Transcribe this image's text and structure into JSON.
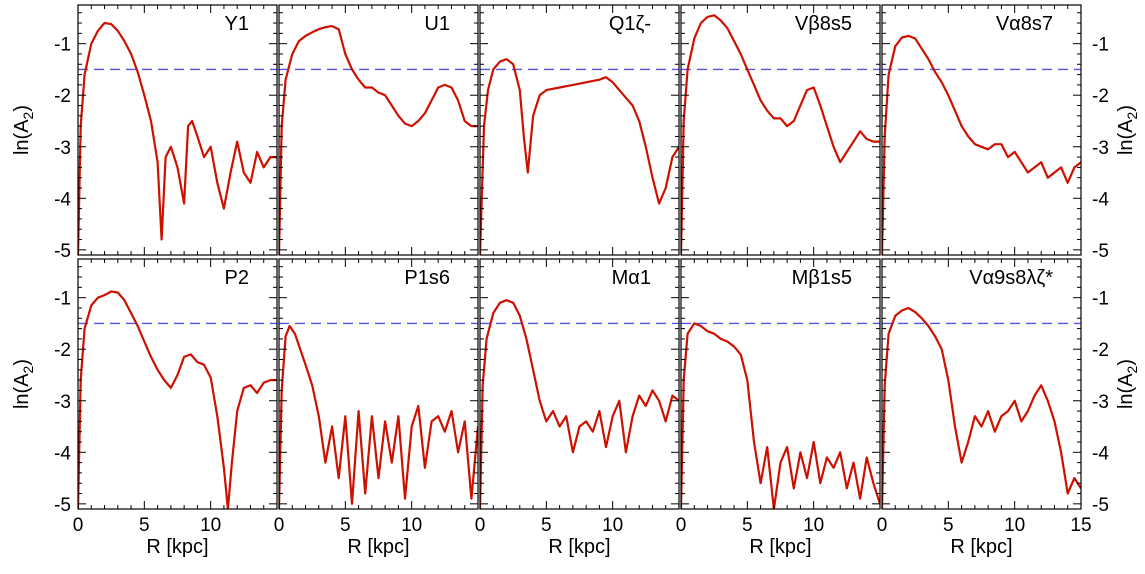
{
  "figure": {
    "x_axis_title": "R [kpc]",
    "y_axis_title_left": "ln(A",
    "y_axis_title_sub": "2",
    "y_axis_title_close": ")"
  },
  "colors": {
    "curve": "#cc1100",
    "threshold": "#5555ee",
    "frame": "#000000"
  },
  "chart_data": [
    {
      "type": "line",
      "title": "Y1",
      "xlim": [
        0,
        15
      ],
      "ylim": [
        -5.1,
        -0.25
      ],
      "threshold": -1.5,
      "grid": false,
      "x": [
        0,
        0.2,
        0.5,
        1,
        1.5,
        2,
        2.5,
        3,
        3.5,
        4,
        4.5,
        5,
        5.5,
        6,
        6.3,
        6.6,
        7,
        7.5,
        8,
        8.3,
        8.6,
        9,
        9.5,
        10,
        10.5,
        11,
        11.5,
        12,
        12.5,
        13,
        13.5,
        14,
        14.5,
        15
      ],
      "y": [
        -5.1,
        -2.6,
        -1.6,
        -1.0,
        -0.75,
        -0.6,
        -0.62,
        -0.75,
        -0.95,
        -1.2,
        -1.55,
        -2.0,
        -2.5,
        -3.3,
        -4.8,
        -3.2,
        -3.0,
        -3.4,
        -4.1,
        -2.6,
        -2.5,
        -2.8,
        -3.2,
        -3.0,
        -3.7,
        -4.2,
        -3.5,
        -2.9,
        -3.5,
        -3.7,
        -3.1,
        -3.4,
        -3.2,
        -3.2
      ]
    },
    {
      "type": "line",
      "title": "U1",
      "xlim": [
        0,
        15
      ],
      "ylim": [
        -5.1,
        -0.25
      ],
      "threshold": -1.5,
      "grid": false,
      "x": [
        0,
        0.2,
        0.5,
        1,
        1.5,
        2,
        2.5,
        3,
        3.5,
        4,
        4.5,
        5,
        5.5,
        6,
        6.5,
        7,
        7.5,
        8,
        8.5,
        9,
        9.5,
        10,
        10.5,
        11,
        11.5,
        12,
        12.5,
        13,
        13.5,
        14,
        14.5,
        15
      ],
      "y": [
        -5.1,
        -2.6,
        -1.7,
        -1.2,
        -0.95,
        -0.85,
        -0.78,
        -0.72,
        -0.68,
        -0.66,
        -0.72,
        -1.2,
        -1.5,
        -1.7,
        -1.85,
        -1.85,
        -1.95,
        -2.0,
        -2.2,
        -2.4,
        -2.55,
        -2.6,
        -2.5,
        -2.35,
        -2.1,
        -1.85,
        -1.8,
        -1.85,
        -2.1,
        -2.5,
        -2.6,
        -2.6
      ]
    },
    {
      "type": "line",
      "title": "Q1ζ-",
      "xlim": [
        0,
        15
      ],
      "ylim": [
        -5.1,
        -0.25
      ],
      "threshold": -1.5,
      "grid": false,
      "x": [
        0,
        0.3,
        0.6,
        1,
        1.5,
        2,
        2.5,
        3,
        3.3,
        3.6,
        4,
        4.5,
        5,
        6,
        7,
        8,
        9,
        9.5,
        10,
        10.5,
        11,
        11.5,
        12,
        12.5,
        13,
        13.5,
        14,
        14.5,
        15
      ],
      "y": [
        -5.1,
        -2.6,
        -1.9,
        -1.5,
        -1.35,
        -1.3,
        -1.4,
        -1.9,
        -2.8,
        -3.5,
        -2.4,
        -2.0,
        -1.9,
        -1.85,
        -1.8,
        -1.75,
        -1.7,
        -1.65,
        -1.75,
        -1.9,
        -2.05,
        -2.2,
        -2.5,
        -3.0,
        -3.6,
        -4.1,
        -3.8,
        -3.2,
        -3.0
      ]
    },
    {
      "type": "line",
      "title": "Vβ8s5",
      "xlim": [
        0,
        15
      ],
      "ylim": [
        -5.1,
        -0.25
      ],
      "threshold": -1.5,
      "grid": false,
      "x": [
        0,
        0.2,
        0.5,
        1,
        1.5,
        2,
        2.5,
        3,
        3.5,
        4,
        4.5,
        5,
        5.5,
        6,
        6.5,
        7,
        7.5,
        8,
        8.5,
        9,
        9.5,
        10,
        10.5,
        11,
        11.5,
        12,
        12.5,
        13,
        13.5,
        14,
        14.5,
        15
      ],
      "y": [
        -5.1,
        -2.5,
        -1.5,
        -0.9,
        -0.6,
        -0.48,
        -0.45,
        -0.55,
        -0.7,
        -0.95,
        -1.2,
        -1.5,
        -1.8,
        -2.1,
        -2.3,
        -2.45,
        -2.45,
        -2.6,
        -2.5,
        -2.2,
        -1.9,
        -1.85,
        -2.2,
        -2.6,
        -3.0,
        -3.3,
        -3.1,
        -2.9,
        -2.7,
        -2.85,
        -2.9,
        -2.9
      ]
    },
    {
      "type": "line",
      "title": "Vα8s7",
      "xlim": [
        0,
        15
      ],
      "ylim": [
        -5.1,
        -0.25
      ],
      "threshold": -1.5,
      "grid": false,
      "x": [
        0,
        0.2,
        0.5,
        1,
        1.5,
        2,
        2.5,
        3,
        3.5,
        4,
        4.5,
        5,
        5.5,
        6,
        6.5,
        7,
        7.5,
        8,
        8.5,
        9,
        9.5,
        10,
        10.5,
        11,
        11.5,
        12,
        12.5,
        13,
        13.5,
        14,
        14.5,
        15
      ],
      "y": [
        -5.1,
        -2.8,
        -1.6,
        -1.05,
        -0.88,
        -0.85,
        -0.9,
        -1.1,
        -1.3,
        -1.55,
        -1.75,
        -2.0,
        -2.3,
        -2.6,
        -2.8,
        -2.95,
        -3.0,
        -3.05,
        -2.95,
        -2.95,
        -3.2,
        -3.1,
        -3.3,
        -3.5,
        -3.4,
        -3.3,
        -3.6,
        -3.5,
        -3.4,
        -3.7,
        -3.4,
        -3.3
      ]
    },
    {
      "type": "line",
      "title": "P2",
      "xlim": [
        0,
        15
      ],
      "ylim": [
        -5.1,
        -0.25
      ],
      "threshold": -1.5,
      "grid": false,
      "x": [
        0,
        0.2,
        0.5,
        1,
        1.5,
        2,
        2.5,
        3,
        3.5,
        4,
        4.5,
        5,
        5.5,
        6,
        6.5,
        7,
        7.5,
        8,
        8.5,
        9,
        9.5,
        10,
        10.5,
        11,
        11.3,
        11.6,
        12,
        12.5,
        13,
        13.5,
        14,
        14.5,
        15
      ],
      "y": [
        -5.1,
        -2.6,
        -1.6,
        -1.15,
        -1.0,
        -0.95,
        -0.88,
        -0.9,
        -1.05,
        -1.3,
        -1.55,
        -1.85,
        -2.15,
        -2.4,
        -2.6,
        -2.75,
        -2.5,
        -2.15,
        -2.1,
        -2.25,
        -2.3,
        -2.55,
        -3.3,
        -4.3,
        -5.1,
        -4.2,
        -3.2,
        -2.75,
        -2.7,
        -2.85,
        -2.65,
        -2.6,
        -2.6
      ]
    },
    {
      "type": "line",
      "title": "P1s6",
      "xlim": [
        0,
        15
      ],
      "ylim": [
        -5.1,
        -0.25
      ],
      "threshold": -1.5,
      "grid": false,
      "x": [
        0,
        0.2,
        0.5,
        0.8,
        1.2,
        1.6,
        2,
        2.5,
        3,
        3.5,
        4,
        4.5,
        5,
        5.5,
        6,
        6.5,
        7,
        7.5,
        8,
        8.5,
        9,
        9.5,
        10,
        10.5,
        11,
        11.5,
        12,
        12.5,
        13,
        13.5,
        14,
        14.5,
        15
      ],
      "y": [
        -5.1,
        -2.8,
        -1.75,
        -1.55,
        -1.7,
        -2.0,
        -2.3,
        -2.7,
        -3.3,
        -4.2,
        -3.5,
        -4.5,
        -3.3,
        -5.0,
        -3.2,
        -4.8,
        -3.3,
        -4.5,
        -3.4,
        -4.2,
        -3.3,
        -4.9,
        -3.5,
        -3.1,
        -4.3,
        -3.4,
        -3.3,
        -3.6,
        -3.2,
        -4.0,
        -3.4,
        -4.9,
        -3.5
      ]
    },
    {
      "type": "line",
      "title": "Mα1",
      "xlim": [
        0,
        15
      ],
      "ylim": [
        -5.1,
        -0.25
      ],
      "threshold": -1.5,
      "grid": false,
      "x": [
        0,
        0.2,
        0.5,
        1,
        1.5,
        2,
        2.5,
        3,
        3.5,
        4,
        4.5,
        5,
        5.5,
        6,
        6.5,
        7,
        7.5,
        8,
        8.5,
        9,
        9.5,
        10,
        10.5,
        11,
        11.5,
        12,
        12.5,
        13,
        13.5,
        14,
        14.5,
        15
      ],
      "y": [
        -5.1,
        -2.7,
        -1.8,
        -1.3,
        -1.1,
        -1.05,
        -1.1,
        -1.35,
        -1.8,
        -2.4,
        -3.0,
        -3.4,
        -3.2,
        -3.5,
        -3.3,
        -4.0,
        -3.5,
        -3.4,
        -3.6,
        -3.2,
        -3.9,
        -3.3,
        -3.0,
        -4.0,
        -3.3,
        -2.9,
        -3.1,
        -2.8,
        -3.0,
        -3.4,
        -2.9,
        -3.0
      ]
    },
    {
      "type": "line",
      "title": "Mβ1s5",
      "xlim": [
        0,
        15
      ],
      "ylim": [
        -5.1,
        -0.25
      ],
      "threshold": -1.5,
      "grid": false,
      "x": [
        0,
        0.2,
        0.5,
        1,
        1.5,
        2,
        2.5,
        3,
        3.5,
        4,
        4.5,
        5,
        5.5,
        6,
        6.5,
        7,
        7.5,
        8,
        8.5,
        9,
        9.5,
        10,
        10.5,
        11,
        11.5,
        12,
        12.5,
        13,
        13.5,
        14,
        14.5,
        15
      ],
      "y": [
        -5.1,
        -2.6,
        -1.7,
        -1.5,
        -1.55,
        -1.65,
        -1.7,
        -1.8,
        -1.85,
        -1.95,
        -2.1,
        -2.6,
        -3.8,
        -4.6,
        -3.9,
        -5.1,
        -4.2,
        -3.9,
        -4.7,
        -4.0,
        -4.5,
        -3.8,
        -4.6,
        -4.1,
        -4.3,
        -4.0,
        -4.7,
        -4.2,
        -4.9,
        -4.1,
        -4.6,
        -5.0
      ]
    },
    {
      "type": "line",
      "title": "Vα9s8λζ*",
      "xlim": [
        0,
        15
      ],
      "ylim": [
        -5.1,
        -0.25
      ],
      "threshold": -1.5,
      "grid": false,
      "x": [
        0,
        0.2,
        0.5,
        1,
        1.5,
        2,
        2.5,
        3,
        3.5,
        4,
        4.5,
        5,
        5.5,
        6,
        6.5,
        7,
        7.5,
        8,
        8.5,
        9,
        9.5,
        10,
        10.5,
        11,
        11.5,
        12,
        12.5,
        13,
        13.5,
        14,
        14.5,
        15
      ],
      "y": [
        -5.1,
        -2.7,
        -1.7,
        -1.35,
        -1.25,
        -1.2,
        -1.28,
        -1.4,
        -1.55,
        -1.75,
        -2.0,
        -2.6,
        -3.5,
        -4.2,
        -3.8,
        -3.3,
        -3.5,
        -3.2,
        -3.6,
        -3.3,
        -3.2,
        -3.0,
        -3.4,
        -3.2,
        -2.9,
        -2.7,
        -3.0,
        -3.4,
        -4.0,
        -4.8,
        -4.5,
        -4.7
      ]
    }
  ]
}
